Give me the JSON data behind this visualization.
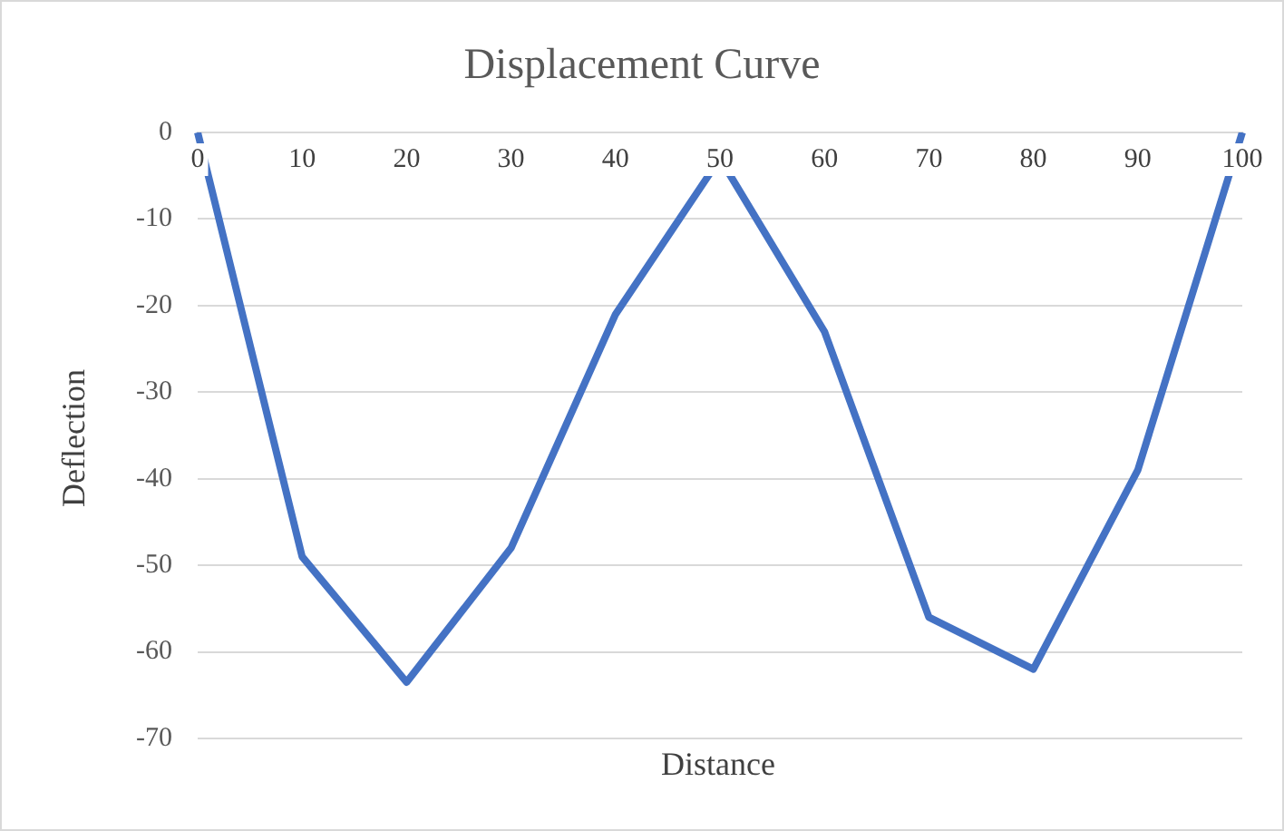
{
  "chart_data": {
    "type": "line",
    "title": "Displacement Curve",
    "xlabel": "Distance",
    "ylabel": "Deflection",
    "categories": [
      "0",
      "10",
      "20",
      "30",
      "40",
      "50",
      "60",
      "70",
      "80",
      "90",
      "100"
    ],
    "series": [
      {
        "color": "#4472c4",
        "values": [
          0,
          -49,
          -63.5,
          -48,
          -21,
          -3,
          -23,
          -56,
          -62,
          -39,
          0
        ]
      }
    ],
    "ylim": [
      -70,
      0
    ],
    "yticks": [
      -70,
      -60,
      -50,
      -40,
      -30,
      -20,
      -10,
      0
    ],
    "grid": "y",
    "legend": false,
    "marker": "none"
  }
}
